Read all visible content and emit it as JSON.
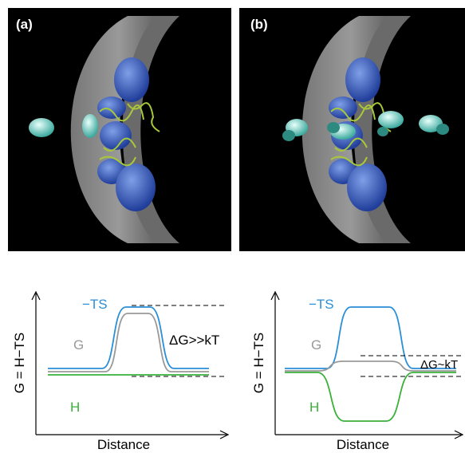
{
  "panel_a": {
    "label": "(a)",
    "plot": {
      "ts_label": "−TS",
      "g_label": "G",
      "dg_label": "ΔG>>kT",
      "h_label": "H",
      "y_label": "G = H−TS",
      "x_label": "Distance"
    }
  },
  "panel_b": {
    "label": "(b)",
    "plot": {
      "ts_label": "−TS",
      "g_label": "G",
      "dg_label": "ΔG~kT",
      "h_label": "H",
      "y_label": "G = H−TS",
      "x_label": "Distance"
    }
  }
}
